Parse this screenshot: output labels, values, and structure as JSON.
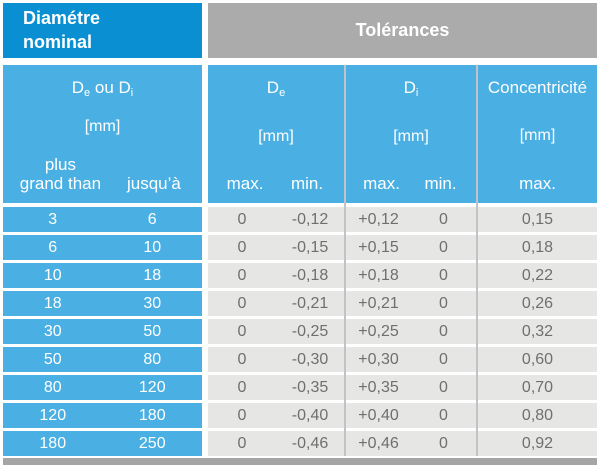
{
  "colors": {
    "header-blue": "#0a8fd2",
    "light-blue": "#4ab0e3",
    "header-gray": "#ababab",
    "cell-gray": "#e6e6e5",
    "divider-gray": "#c2c3c4",
    "bottom-bar-gray": "#a5a5a5",
    "value-text": "#6f6f6f"
  },
  "chart_data": {
    "type": "table",
    "header_left_title": "Diamétre\nnominal",
    "header_right_title": "Tolérances",
    "range_col": {
      "d1": "D",
      "d1_sub": "e",
      "joiner": " ou ",
      "d2": "D",
      "d2_sub": "i",
      "unit": "[mm]",
      "from_label_line1": "plus",
      "from_label_line2": "grand than",
      "to_label": "jusqu’à"
    },
    "de_col": {
      "title": "D",
      "title_sub": "e",
      "unit": "[mm]",
      "max_label": "max.",
      "min_label": "min."
    },
    "di_col": {
      "title": "D",
      "title_sub": "i",
      "unit": "[mm]",
      "max_label": "max.",
      "min_label": "min."
    },
    "conc_col": {
      "title": "Concentricité",
      "unit": "[mm]",
      "max_label": "max."
    },
    "rows": [
      {
        "from": "3",
        "to": "6",
        "de_max": "0",
        "de_min": "-0,12",
        "di_max": "+0,12",
        "di_min": "0",
        "conc_max": "0,15"
      },
      {
        "from": "6",
        "to": "10",
        "de_max": "0",
        "de_min": "-0,15",
        "di_max": "+0,15",
        "di_min": "0",
        "conc_max": "0,18"
      },
      {
        "from": "10",
        "to": "18",
        "de_max": "0",
        "de_min": "-0,18",
        "di_max": "+0,18",
        "di_min": "0",
        "conc_max": "0,22"
      },
      {
        "from": "18",
        "to": "30",
        "de_max": "0",
        "de_min": "-0,21",
        "di_max": "+0,21",
        "di_min": "0",
        "conc_max": "0,26"
      },
      {
        "from": "30",
        "to": "50",
        "de_max": "0",
        "de_min": "-0,25",
        "di_max": "+0,25",
        "di_min": "0",
        "conc_max": "0,32"
      },
      {
        "from": "50",
        "to": "80",
        "de_max": "0",
        "de_min": "-0,30",
        "di_max": "+0,30",
        "di_min": "0",
        "conc_max": "0,60"
      },
      {
        "from": "80",
        "to": "120",
        "de_max": "0",
        "de_min": "-0,35",
        "di_max": "+0,35",
        "di_min": "0",
        "conc_max": "0,70"
      },
      {
        "from": "120",
        "to": "180",
        "de_max": "0",
        "de_min": "-0,40",
        "di_max": "+0,40",
        "di_min": "0",
        "conc_max": "0,80"
      },
      {
        "from": "180",
        "to": "250",
        "de_max": "0",
        "de_min": "-0,46",
        "di_max": "+0,46",
        "di_min": "0",
        "conc_max": "0,92"
      }
    ]
  }
}
